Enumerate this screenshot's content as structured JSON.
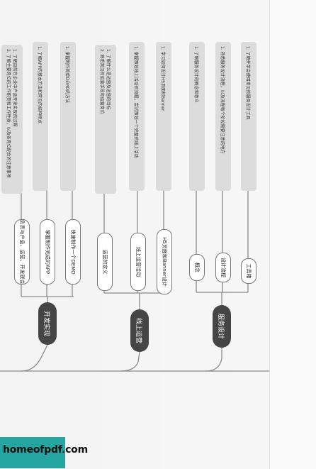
{
  "watermark": "homeofpdf.com",
  "categories": [
    {
      "label": "开发实现",
      "items": [
        {
          "label": "负责与产品、运营、开发联合",
          "notes": [
            "1. 了解目前在企业中产品开发实现的过程",
            "2. 了解主要岗位的工作职责和工作性质，以及各岗位配合的注意事项"
          ]
        },
        {
          "label": "掌握制作完成的APP",
          "notes": [
            "1. 了解APP的基本方法和常见的结构特点"
          ]
        },
        {
          "label": "快速制作一个DEMO",
          "notes": [
            "1. 掌握制作简单DEMO的方法"
          ]
        }
      ]
    },
    {
      "label": "线上运营",
      "items": [
        {
          "label": "运营的定义",
          "notes": [
            "1. 了解什么是运营及运营的目标",
            "2. 熟悉常见的运营手段和运营岗位"
          ]
        },
        {
          "label": "线上运营活动",
          "notes": [
            "1. 掌握策划线上活动的流程，尝试策划一个完整的线上活动"
          ]
        },
        {
          "label": "H5页面和Banner设计",
          "notes": [
            "1. 学习如何设计H5页面和Banner"
          ]
        }
      ]
    },
    {
      "label": "服务设计",
      "items": [
        {
          "label": "概念",
          "notes": [
            "1. 了解服务设计的概念和意义"
          ]
        },
        {
          "label": "设计流程",
          "notes": [
            "1. 熟悉服务设计流程，以及流程每个阶段需要注意的地方"
          ]
        },
        {
          "label": "工具箱",
          "notes": [
            "1. 了解并学会使用常见的服务设计工具"
          ]
        }
      ]
    }
  ]
}
